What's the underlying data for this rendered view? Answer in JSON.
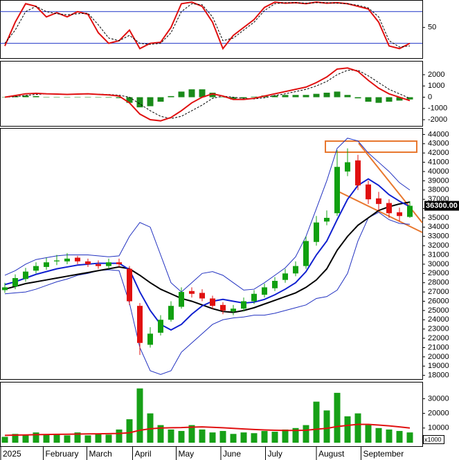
{
  "chart_data": [
    {
      "type": "line",
      "ylim": [
        -8,
        102
      ],
      "yticks": [
        50
      ],
      "levels": [
        20,
        80
      ],
      "level_color": "#1f35c8",
      "series": [
        {
          "color": "#e01010",
          "width": 2,
          "dashed": false,
          "values": [
            15,
            60,
            95,
            90,
            70,
            78,
            70,
            80,
            75,
            40,
            20,
            25,
            45,
            10,
            20,
            22,
            50,
            95,
            98,
            90,
            60,
            10,
            35,
            50,
            65,
            88,
            98,
            96,
            97,
            95,
            98,
            96,
            97,
            95,
            90,
            85,
            60,
            15,
            10,
            20
          ]
        },
        {
          "color": "#000000",
          "width": 1,
          "dashed": true,
          "values": [
            20,
            45,
            80,
            90,
            80,
            76,
            74,
            76,
            77,
            55,
            30,
            25,
            35,
            20,
            18,
            20,
            40,
            80,
            95,
            93,
            70,
            25,
            30,
            45,
            60,
            82,
            95,
            97,
            97,
            96,
            97,
            97,
            96,
            95,
            92,
            87,
            70,
            25,
            13,
            15
          ]
        }
      ]
    },
    {
      "type": "line",
      "ylim": [
        -2550,
        3230
      ],
      "yticks": [
        2000,
        1000,
        0,
        -1000,
        -2000
      ],
      "series": [
        {
          "kind": "bar",
          "color": "#1a8a1a",
          "values": [
            0,
            100,
            150,
            100,
            10,
            -10,
            -20,
            10,
            20,
            -20,
            -40,
            -80,
            -500,
            -900,
            -800,
            -400,
            100,
            500,
            700,
            700,
            400,
            0,
            -200,
            -100,
            50,
            150,
            150,
            200,
            200,
            200,
            300,
            400,
            500,
            200,
            -100,
            -400,
            -500,
            -400,
            -300,
            -200
          ]
        },
        {
          "color": "#000000",
          "width": 1,
          "dashed": true,
          "values": [
            0,
            50,
            150,
            250,
            290,
            290,
            270,
            270,
            280,
            270,
            240,
            180,
            0,
            -600,
            -1200,
            -1700,
            -1900,
            -1700,
            -1200,
            -700,
            -100,
            100,
            0,
            -100,
            -150,
            -50,
            150,
            300,
            500,
            700,
            1000,
            1400,
            2000,
            2400,
            2400,
            1900,
            1300,
            700,
            300,
            -100
          ]
        },
        {
          "color": "#e01010",
          "width": 2,
          "dashed": false,
          "values": [
            0,
            150,
            300,
            350,
            300,
            280,
            250,
            280,
            300,
            250,
            200,
            100,
            -500,
            -1500,
            -2000,
            -2100,
            -1800,
            -1200,
            -500,
            0,
            300,
            100,
            -200,
            -200,
            -100,
            100,
            300,
            500,
            700,
            900,
            1300,
            1800,
            2500,
            2600,
            2300,
            1500,
            800,
            300,
            0,
            -300
          ]
        }
      ]
    },
    {
      "type": "candlestick",
      "ylim": [
        17600,
        44700
      ],
      "yticks": [
        18000,
        19000,
        20000,
        21000,
        22000,
        23000,
        24000,
        25000,
        26000,
        27000,
        28000,
        29000,
        30000,
        31000,
        32000,
        33000,
        34000,
        35000,
        36000,
        37000,
        38000,
        39000,
        40000,
        41000,
        42000,
        43000,
        44000
      ],
      "up_color": "#10a010",
      "down_color": "#e01010",
      "open": [
        27200,
        27600,
        28400,
        29300,
        29700,
        30300,
        30300,
        30700,
        30300,
        30000,
        29800,
        30200,
        29500,
        25500,
        21300,
        22600,
        24000,
        25400,
        27100,
        26900,
        26300,
        25600,
        24900,
        25200,
        26000,
        26700,
        27400,
        28300,
        29000,
        29800,
        32400,
        34600,
        35500,
        40000,
        41200,
        38600,
        37100,
        36600,
        35600,
        35100
      ],
      "high": [
        28000,
        28900,
        29600,
        30200,
        30700,
        31000,
        31200,
        30900,
        30600,
        30400,
        30600,
        30600,
        29800,
        25800,
        23200,
        24500,
        26000,
        27500,
        27500,
        27300,
        26600,
        25900,
        25600,
        26400,
        27200,
        27900,
        28600,
        29500,
        30300,
        33000,
        35200,
        35800,
        42300,
        42500,
        41800,
        39000,
        37800,
        37000,
        36100,
        36800
      ],
      "low": [
        26900,
        27300,
        28100,
        29000,
        29400,
        29900,
        30000,
        30000,
        29700,
        29500,
        29500,
        29700,
        25600,
        20200,
        21000,
        22300,
        23800,
        25200,
        26400,
        26000,
        25200,
        24600,
        24500,
        24900,
        25700,
        26400,
        27100,
        28000,
        28700,
        29500,
        32000,
        34200,
        35200,
        39500,
        38000,
        36500,
        35800,
        35000,
        34600,
        35000
      ],
      "close": [
        27500,
        28500,
        29200,
        29800,
        30200,
        30400,
        30600,
        30300,
        30000,
        29800,
        30200,
        30000,
        26000,
        21500,
        22500,
        24000,
        25500,
        27000,
        26800,
        26300,
        25500,
        25000,
        25200,
        26000,
        26800,
        27500,
        28200,
        29000,
        29800,
        32500,
        34500,
        35000,
        40500,
        41000,
        38500,
        37000,
        36500,
        35500,
        35200,
        36300
      ],
      "overlays": [
        {
          "color": "#2030c0",
          "width": 1,
          "values": [
            28800,
            29300,
            30000,
            30500,
            30700,
            30900,
            31000,
            31000,
            31000,
            30900,
            30800,
            30900,
            33000,
            34500,
            34000,
            31000,
            28000,
            27000,
            28000,
            29000,
            29200,
            28800,
            28000,
            27200,
            27300,
            28000,
            28800,
            29600,
            30800,
            33000,
            36000,
            39000,
            42500,
            43600,
            43300,
            42000,
            41000,
            40000,
            38800,
            38000
          ]
        },
        {
          "color": "#2030c0",
          "width": 1,
          "values": [
            26800,
            26900,
            27000,
            27300,
            27700,
            28100,
            28400,
            28800,
            29000,
            29300,
            29400,
            29300,
            25800,
            21000,
            18500,
            18100,
            18500,
            20500,
            21500,
            22500,
            23500,
            24000,
            24200,
            24300,
            24500,
            24500,
            24700,
            25000,
            25300,
            25600,
            26300,
            26500,
            27200,
            29000,
            32500,
            35000,
            35600,
            34800,
            34400,
            34300
          ]
        },
        {
          "color": "#000000",
          "width": 2,
          "values": [
            27300,
            27600,
            27900,
            28100,
            28300,
            28500,
            28700,
            28900,
            29100,
            29300,
            29500,
            29700,
            29500,
            28800,
            28000,
            27300,
            26800,
            26300,
            26000,
            25600,
            25200,
            24900,
            24800,
            25000,
            25300,
            25700,
            26100,
            26500,
            26900,
            27500,
            28300,
            29500,
            31500,
            33000,
            34200,
            35000,
            35800,
            36200,
            36500,
            36700
          ]
        },
        {
          "color": "#1020d0",
          "width": 2,
          "values": [
            27800,
            28100,
            28500,
            28900,
            29200,
            29500,
            29700,
            29900,
            30000,
            30100,
            30100,
            30100,
            29400,
            27000,
            25000,
            23500,
            22900,
            23500,
            24600,
            25500,
            26000,
            26200,
            26000,
            25800,
            25900,
            26200,
            26700,
            27300,
            28000,
            29200,
            31000,
            32500,
            34800,
            37000,
            38500,
            39200,
            38500,
            37500,
            36800,
            36200
          ]
        }
      ],
      "last_price": 36300,
      "last_price_label": "36300.00"
    },
    {
      "type": "bar",
      "ylim": [
        0,
        41500
      ],
      "yticks": [
        30000,
        20000,
        10000
      ],
      "unit_label": "x1000",
      "series": [
        {
          "kind": "bar",
          "color": "#17a017",
          "values": [
            4000,
            6000,
            5000,
            7000,
            5500,
            6000,
            5000,
            7000,
            5000,
            6000,
            5500,
            9000,
            16000,
            37000,
            20000,
            12000,
            9000,
            8000,
            12000,
            9000,
            7000,
            8000,
            6000,
            7000,
            6500,
            8000,
            7500,
            9000,
            10000,
            12000,
            28000,
            22000,
            34000,
            18000,
            20000,
            12000,
            10000,
            9000,
            8000,
            7000
          ]
        },
        {
          "color": "#e01010",
          "width": 2,
          "dashed": false,
          "values": [
            5000,
            5200,
            5300,
            5500,
            5600,
            5700,
            5800,
            5900,
            6000,
            6100,
            6200,
            6300,
            6800,
            8500,
            9500,
            10000,
            10200,
            10300,
            10600,
            10800,
            10500,
            10200,
            9800,
            9400,
            9000,
            8700,
            8500,
            8400,
            8400,
            8500,
            9200,
            9800,
            11000,
            11800,
            12500,
            12500,
            12000,
            11500,
            10800,
            10000
          ]
        }
      ],
      "xticks": [
        {
          "value": -0.4,
          "label": "2025"
        },
        {
          "value": 3.7,
          "label": "February"
        },
        {
          "value": 7.9,
          "label": "March"
        },
        {
          "value": 12.3,
          "label": "April"
        },
        {
          "value": 16.5,
          "label": "May"
        },
        {
          "value": 20.8,
          "label": "June"
        },
        {
          "value": 25.1,
          "label": "July"
        },
        {
          "value": 30,
          "label": "August"
        },
        {
          "value": 34.3,
          "label": "September"
        }
      ]
    }
  ]
}
